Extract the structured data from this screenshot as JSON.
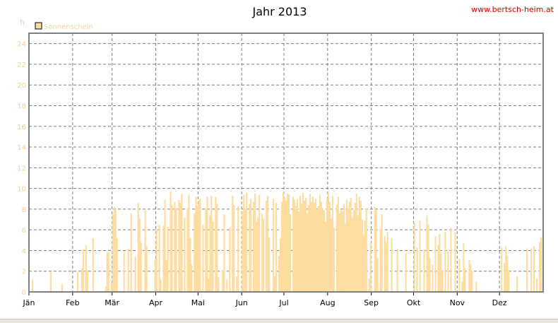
{
  "chart_data": {
    "type": "bar",
    "title": "Jahr 2013",
    "source": "www.bertsch-heim.at",
    "ylabel": "h",
    "legend": [
      "Sonnenschein"
    ],
    "legend_position": "top-left",
    "ylim": [
      0,
      25
    ],
    "yticks": [
      "0",
      "2",
      "4",
      "6",
      "8",
      "10",
      "12",
      "14",
      "16",
      "18",
      "20",
      "22",
      "24"
    ],
    "months": [
      "Jän",
      "Feb",
      "Mär",
      "Apr",
      "Mai",
      "Jun",
      "Jul",
      "Aug",
      "Sep",
      "Okt",
      "Nov",
      "Dez"
    ],
    "grid": true,
    "series": [
      {
        "name": "Sonnenschein",
        "color": "#fddca0",
        "unit": "h/day",
        "monthly_daily_values": [
          [
            0,
            0,
            1.2,
            0,
            0,
            0,
            0,
            0,
            0,
            0,
            0,
            0,
            0,
            0,
            0,
            1.9,
            0,
            0,
            0,
            0,
            0,
            0,
            0,
            0.8,
            0,
            0,
            0,
            0,
            0,
            0,
            0
          ],
          [
            0,
            0,
            0,
            1.9,
            0,
            0,
            2.3,
            4.1,
            0,
            4.5,
            2.1,
            0,
            0,
            0,
            5.2,
            0,
            0,
            0,
            0,
            0,
            0,
            0,
            0,
            0.5,
            3.9,
            3.8,
            0,
            0.9
          ],
          [
            7.5,
            8.2,
            7.9,
            5.2,
            0,
            0,
            0,
            0,
            3.9,
            0,
            0,
            4.2,
            0,
            7.6,
            0,
            0,
            3.4,
            0,
            8.6,
            7.1,
            4.8,
            0,
            0,
            7.9,
            4.4,
            0,
            0,
            0,
            0,
            0,
            3.2
          ],
          [
            6.1,
            0,
            6.5,
            1.2,
            0,
            6.4,
            8.9,
            3.1,
            6.3,
            0,
            9.7,
            8.4,
            0,
            8.7,
            8.1,
            0,
            8.9,
            8.6,
            9.5,
            0,
            7.2,
            0,
            8.1,
            9.4,
            5.2,
            2.6,
            0,
            7.6,
            9.2,
            8.3
          ],
          [
            8.8,
            9.0,
            0,
            6.5,
            0,
            8.1,
            9.2,
            1.3,
            7.4,
            9.3,
            6.8,
            0,
            9.2,
            8.5,
            1.4,
            0,
            0,
            2.1,
            7.5,
            0,
            1.2,
            0,
            6.2,
            0,
            9.3,
            8.4,
            0,
            1.5,
            8.3,
            0,
            0
          ],
          [
            7.8,
            9.4,
            8.1,
            9.6,
            0,
            8.5,
            9.0,
            0,
            8.7,
            9.5,
            6.8,
            7.2,
            9.4,
            0,
            7.6,
            7.1,
            0,
            8.8,
            9.3,
            5.3,
            0,
            0,
            9.0,
            1.5,
            8.6,
            0,
            3.5,
            5.2,
            8.7,
            9.6
          ],
          [
            9.1,
            8.8,
            9.5,
            9.4,
            7.5,
            0,
            9.2,
            8.9,
            8.3,
            9.0,
            7.8,
            9.3,
            8.5,
            9.6,
            8.8,
            9.1,
            7.6,
            8.4,
            9.5,
            8.7,
            9.2,
            8.6,
            9.0,
            7.9,
            8.3,
            9.4,
            8.7,
            8.1,
            7.9,
            6.8,
            9.0
          ],
          [
            9.6,
            8.7,
            7.1,
            9.3,
            6.2,
            0,
            8.4,
            9.2,
            7.6,
            8.0,
            7.8,
            8.5,
            6.6,
            8.9,
            8.1,
            8.7,
            9.1,
            7.2,
            7.9,
            8.6,
            9.5,
            7.4,
            9.2,
            8.8,
            7.0,
            5.5,
            6.9,
            8.1,
            0,
            1.3,
            4.8
          ],
          [
            0,
            0,
            8.2,
            7.9,
            3.3,
            0,
            6.1,
            7.5,
            0,
            5.4,
            4.8,
            5.8,
            0,
            0,
            5.2,
            0,
            0,
            0,
            4.2,
            0,
            0,
            0,
            0,
            0,
            3.8,
            0,
            0,
            0,
            0,
            0
          ],
          [
            6.7,
            0,
            4.3,
            0,
            6.9,
            0,
            0,
            4.1,
            0,
            7.4,
            6.5,
            3.3,
            0,
            2.6,
            0,
            5.4,
            0,
            4.5,
            5.6,
            3.7,
            2.1,
            0,
            5.8,
            0,
            3.9,
            0,
            6.2,
            0,
            0,
            5.8,
            0
          ],
          [
            0,
            3.2,
            0,
            1.0,
            4.7,
            2.3,
            0,
            0,
            3.1,
            2.7,
            2.0,
            0,
            0,
            1.0,
            0,
            0,
            0,
            0,
            0,
            0,
            0,
            0,
            0,
            0,
            0,
            0,
            0,
            0,
            0,
            0
          ],
          [
            0,
            4.3,
            0,
            2.8,
            4.4,
            3.5,
            2.1,
            0,
            0,
            0,
            0,
            0,
            1.5,
            0,
            0,
            0,
            0,
            0,
            0,
            4.2,
            0,
            0,
            4.2,
            0,
            4.4,
            0,
            1.3,
            0,
            4.8,
            5.3,
            0
          ]
        ]
      }
    ]
  }
}
